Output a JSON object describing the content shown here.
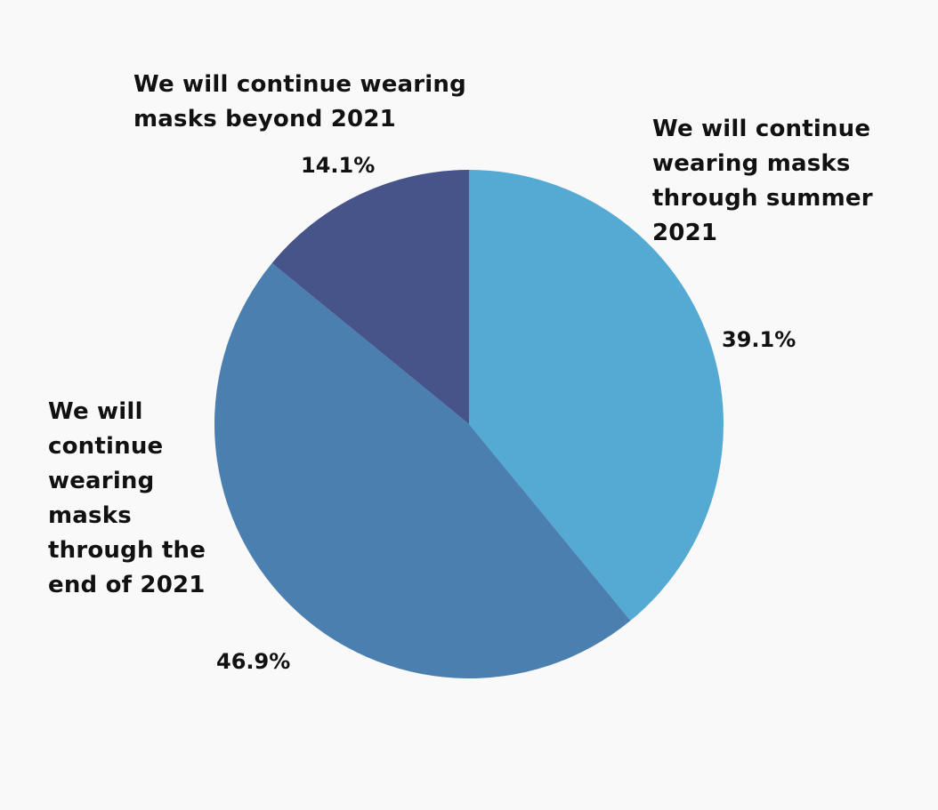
{
  "chart_data": {
    "type": "pie",
    "title": "",
    "start": "12 o'clock",
    "direction": "clockwise",
    "slices": [
      {
        "label": "We will continue wearing masks through summer 2021",
        "value": 39.1,
        "value_label": "39.1%",
        "color": "#55aad3"
      },
      {
        "label": "We will continue wearing masks through the end of 2021",
        "value": 46.9,
        "value_label": "46.9%",
        "color": "#4a7fb0"
      },
      {
        "label": "We will continue wearing masks beyond 2021",
        "value": 14.1,
        "value_label": "14.1%",
        "color": "#46548a"
      }
    ]
  },
  "colors": {
    "background": "#f9f9f9",
    "text": "#111111"
  }
}
